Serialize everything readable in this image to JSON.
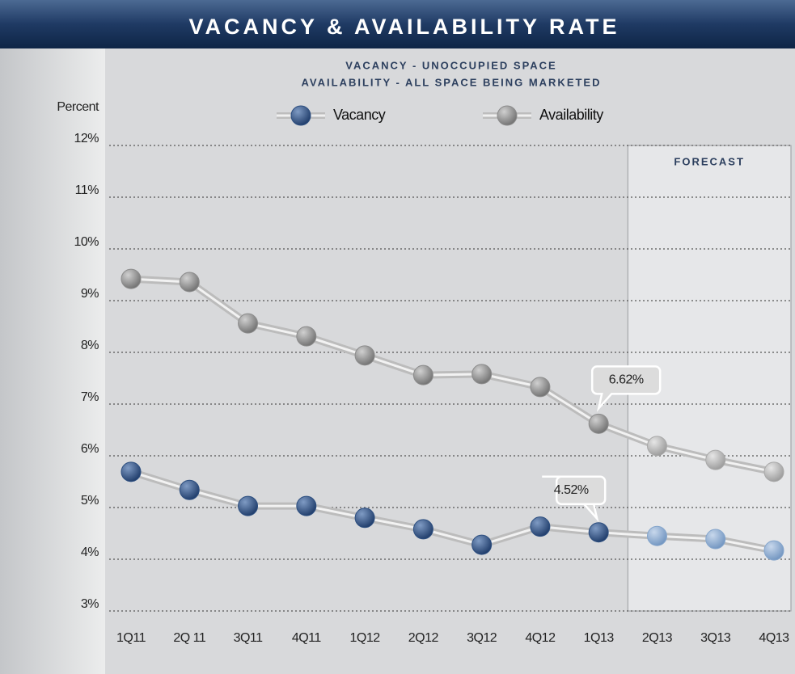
{
  "chart_data": {
    "type": "line",
    "title": "VACANCY & AVAILABILITY RATE",
    "subtitle": [
      "VACANCY - UNOCCUPIED SPACE",
      "AVAILABILITY - ALL SPACE BEING MARKETED"
    ],
    "y_label": "Percent",
    "categories": [
      "1Q11",
      "2Q 11",
      "3Q11",
      "4Q11",
      "1Q12",
      "2Q12",
      "3Q12",
      "4Q12",
      "1Q13",
      "2Q13",
      "3Q13",
      "4Q13"
    ],
    "forecast_label": "FORECAST",
    "forecast_start": "2Q13",
    "series": [
      {
        "name": "Vacancy",
        "color": "#2d4f80",
        "forecast_color": "#86a6cc",
        "values": [
          5.69,
          5.34,
          5.03,
          5.03,
          4.8,
          4.58,
          4.28,
          4.63,
          4.52,
          4.45,
          4.39,
          4.17
        ],
        "value_labels": [
          null,
          null,
          null,
          null,
          null,
          null,
          null,
          null,
          "4.52%",
          null,
          null,
          null
        ]
      },
      {
        "name": "Availability",
        "color": "#8c8c8c",
        "forecast_color": "#a9a9a9",
        "values": [
          9.42,
          9.36,
          8.56,
          8.31,
          7.94,
          7.56,
          7.58,
          7.33,
          6.62,
          6.19,
          5.92,
          5.69
        ],
        "value_labels": [
          null,
          null,
          null,
          null,
          null,
          null,
          null,
          null,
          "6.62%",
          null,
          null,
          null
        ]
      }
    ],
    "ylim": [
      3,
      12
    ],
    "yticks": [
      {
        "value": 3,
        "label": "3%"
      },
      {
        "value": 4,
        "label": "4%"
      },
      {
        "value": 5,
        "label": "5%"
      },
      {
        "value": 6,
        "label": "6%"
      },
      {
        "value": 7,
        "label": "7%"
      },
      {
        "value": 8,
        "label": "8%"
      },
      {
        "value": 9,
        "label": "9%"
      },
      {
        "value": 10,
        "label": "10%"
      },
      {
        "value": 11,
        "label": "11%"
      },
      {
        "value": 12,
        "label": "12%"
      }
    ],
    "grid": true,
    "legend": "top"
  }
}
